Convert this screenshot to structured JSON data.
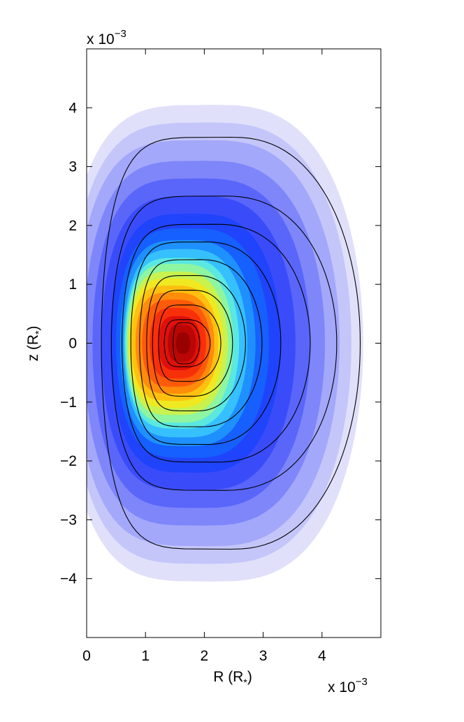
{
  "chart_data": {
    "type": "contour",
    "xlabel": {
      "main": "R (R",
      "sub": "*",
      "close": ")"
    },
    "ylabel": {
      "main": "z (R",
      "sub": "*",
      "close": ")"
    },
    "x_multiplier": {
      "base": "x 10",
      "exp": "−3"
    },
    "y_multiplier": {
      "base": "x 10",
      "exp": "−3"
    },
    "xlim": [
      0,
      5
    ],
    "ylim": [
      -5,
      5
    ],
    "x_ticks": [
      {
        "value": 0,
        "label": "0"
      },
      {
        "value": 1,
        "label": "1"
      },
      {
        "value": 2,
        "label": "2"
      },
      {
        "value": 3,
        "label": "3"
      },
      {
        "value": 4,
        "label": "4"
      }
    ],
    "y_ticks": [
      {
        "value": 4,
        "label": "4"
      },
      {
        "value": 3,
        "label": "3"
      },
      {
        "value": 2,
        "label": "2"
      },
      {
        "value": 1,
        "label": "1"
      },
      {
        "value": 0,
        "label": "0"
      },
      {
        "value": -1,
        "label": "−1"
      },
      {
        "value": -2,
        "label": "−2"
      },
      {
        "value": -3,
        "label": "−3"
      },
      {
        "value": -4,
        "label": "−4"
      }
    ],
    "filled_contours": [
      {
        "cx": 2.15,
        "cy": 0,
        "half_width": 2.55,
        "top": 4.05,
        "bottom": -4.05,
        "color": "#e0e0fa"
      },
      {
        "cx": 2.1,
        "cy": 0,
        "half_width": 2.4,
        "top": 3.75,
        "bottom": -3.75,
        "color": "#c4c6fa"
      },
      {
        "cx": 2.05,
        "cy": 0,
        "half_width": 2.25,
        "top": 3.45,
        "bottom": -3.45,
        "color": "#a4a8fa"
      },
      {
        "cx": 2.0,
        "cy": 0,
        "half_width": 2.05,
        "top": 3.1,
        "bottom": -3.1,
        "color": "#7e86fa"
      },
      {
        "cx": 1.95,
        "cy": 0,
        "half_width": 1.85,
        "top": 2.8,
        "bottom": -2.8,
        "color": "#5a66fa"
      },
      {
        "cx": 1.9,
        "cy": 0,
        "half_width": 1.65,
        "top": 2.5,
        "bottom": -2.5,
        "color": "#3a4cfa"
      },
      {
        "cx": 1.85,
        "cy": 0,
        "half_width": 1.45,
        "top": 2.2,
        "bottom": -2.2,
        "color": "#2044fc"
      },
      {
        "cx": 1.8,
        "cy": 0,
        "half_width": 1.3,
        "top": 1.95,
        "bottom": -1.95,
        "color": "#1560ff"
      },
      {
        "cx": 1.72,
        "cy": 0,
        "half_width": 1.15,
        "top": 1.75,
        "bottom": -1.75,
        "color": "#1e90ff"
      },
      {
        "cx": 1.68,
        "cy": 0,
        "half_width": 1.05,
        "top": 1.6,
        "bottom": -1.6,
        "color": "#36c0ff"
      },
      {
        "cx": 1.62,
        "cy": 0,
        "half_width": 0.97,
        "top": 1.45,
        "bottom": -1.45,
        "color": "#5ae8e0"
      },
      {
        "cx": 1.58,
        "cy": 0,
        "half_width": 0.91,
        "top": 1.35,
        "bottom": -1.35,
        "color": "#8ef5a0"
      },
      {
        "cx": 1.55,
        "cy": 0,
        "half_width": 0.85,
        "top": 1.22,
        "bottom": -1.22,
        "color": "#c8f250"
      },
      {
        "cx": 1.52,
        "cy": 0,
        "half_width": 0.8,
        "top": 1.1,
        "bottom": -1.1,
        "color": "#f0e820"
      },
      {
        "cx": 1.5,
        "cy": 0,
        "half_width": 0.74,
        "top": 0.98,
        "bottom": -0.98,
        "color": "#ffc010"
      },
      {
        "cx": 1.5,
        "cy": 0,
        "half_width": 0.67,
        "top": 0.86,
        "bottom": -0.86,
        "color": "#ff8c0a"
      },
      {
        "cx": 1.52,
        "cy": 0,
        "half_width": 0.58,
        "top": 0.74,
        "bottom": -0.74,
        "color": "#ff5a0a"
      },
      {
        "cx": 1.55,
        "cy": 0,
        "half_width": 0.48,
        "top": 0.6,
        "bottom": -0.6,
        "color": "#f8300a"
      },
      {
        "cx": 1.58,
        "cy": 0,
        "half_width": 0.36,
        "top": 0.46,
        "bottom": -0.46,
        "color": "#e0100a"
      },
      {
        "cx": 1.62,
        "cy": 0,
        "half_width": 0.24,
        "top": 0.32,
        "bottom": -0.32,
        "color": "#bb0606"
      },
      {
        "cx": 1.64,
        "cy": 0,
        "half_width": 0.12,
        "top": 0.18,
        "bottom": -0.18,
        "color": "#990000"
      }
    ],
    "line_contours": [
      {
        "r_in": 0.25,
        "r_out": 4.65,
        "z_top": 3.5,
        "r_peak": 2.1
      },
      {
        "r_in": 0.42,
        "r_out": 4.25,
        "z_top": 2.5,
        "r_peak": 2.45
      },
      {
        "r_in": 0.6,
        "r_out": 3.8,
        "z_top": 2.02,
        "r_peak": 2.05
      },
      {
        "r_in": 0.75,
        "r_out": 3.3,
        "z_top": 1.72,
        "r_peak": 1.9
      },
      {
        "r_in": 0.9,
        "r_out": 2.98,
        "z_top": 1.42,
        "r_peak": 1.8
      },
      {
        "r_in": 1.02,
        "r_out": 2.7,
        "z_top": 1.15,
        "r_peak": 1.75
      },
      {
        "r_in": 1.12,
        "r_out": 2.48,
        "z_top": 0.9,
        "r_peak": 1.72
      },
      {
        "r_in": 1.22,
        "r_out": 2.28,
        "z_top": 0.65,
        "r_peak": 1.7
      },
      {
        "r_in": 1.32,
        "r_out": 2.1,
        "z_top": 0.4,
        "r_peak": 1.7
      },
      {
        "r_in": 1.47,
        "r_out": 1.92,
        "z_top": 0.35,
        "r_peak": 1.7
      }
    ]
  }
}
